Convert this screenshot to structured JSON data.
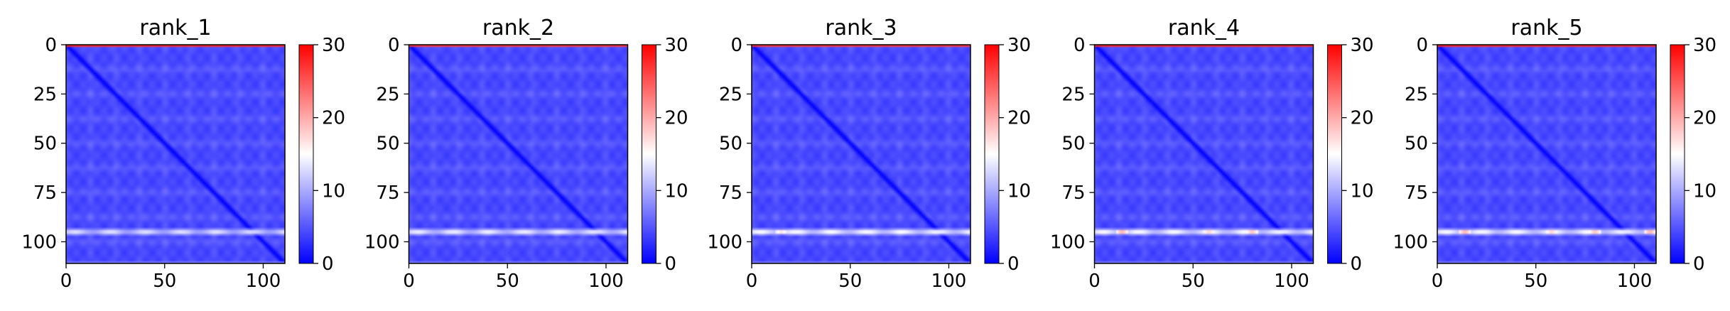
{
  "chart_data": [
    {
      "type": "heatmap",
      "title": "rank_1",
      "xlabel": "",
      "ylabel": "",
      "xlim": [
        0,
        111
      ],
      "ylim": [
        111,
        0
      ],
      "xticks": [
        0,
        50,
        100
      ],
      "yticks": [
        0,
        25,
        50,
        75,
        100
      ],
      "colorbar": {
        "range": [
          0,
          30
        ],
        "ticks": [
          0,
          10,
          20,
          30
        ],
        "colormap": "bwr"
      },
      "features": {
        "diagonal_value": 0,
        "background_value": 4,
        "band_rows": [
          {
            "y": 95,
            "value": 13
          }
        ],
        "top_row_value": 28
      },
      "hotspots": []
    },
    {
      "type": "heatmap",
      "title": "rank_2",
      "xlabel": "",
      "ylabel": "",
      "xlim": [
        0,
        111
      ],
      "ylim": [
        111,
        0
      ],
      "xticks": [
        0,
        50,
        100
      ],
      "yticks": [
        0,
        25,
        50,
        75,
        100
      ],
      "colorbar": {
        "range": [
          0,
          30
        ],
        "ticks": [
          0,
          10,
          20,
          30
        ],
        "colormap": "bwr"
      },
      "features": {
        "diagonal_value": 0,
        "background_value": 4,
        "band_rows": [
          {
            "y": 95,
            "value": 14
          }
        ],
        "top_row_value": 27
      },
      "hotspots": []
    },
    {
      "type": "heatmap",
      "title": "rank_3",
      "xlabel": "",
      "ylabel": "",
      "xlim": [
        0,
        111
      ],
      "ylim": [
        111,
        0
      ],
      "xticks": [
        0,
        50,
        100
      ],
      "yticks": [
        0,
        25,
        50,
        75,
        100
      ],
      "colorbar": {
        "range": [
          0,
          30
        ],
        "ticks": [
          0,
          10,
          20,
          30
        ],
        "colormap": "bwr"
      },
      "features": {
        "diagonal_value": 0,
        "background_value": 4,
        "band_rows": [
          {
            "y": 95,
            "value": 15
          }
        ],
        "top_row_value": 27
      },
      "hotspots": [
        {
          "x": 15,
          "y": 95,
          "value": 19
        }
      ]
    },
    {
      "type": "heatmap",
      "title": "rank_4",
      "xlabel": "",
      "ylabel": "",
      "xlim": [
        0,
        111
      ],
      "ylim": [
        111,
        0
      ],
      "xticks": [
        0,
        50,
        100
      ],
      "yticks": [
        0,
        25,
        50,
        75,
        100
      ],
      "colorbar": {
        "range": [
          0,
          30
        ],
        "ticks": [
          0,
          10,
          20,
          30
        ],
        "colormap": "bwr"
      },
      "features": {
        "diagonal_value": 0,
        "background_value": 4,
        "band_rows": [
          {
            "y": 95,
            "value": 15
          }
        ],
        "top_row_value": 28
      },
      "hotspots": [
        {
          "x": 14,
          "y": 95,
          "value": 22
        },
        {
          "x": 58,
          "y": 95,
          "value": 20
        },
        {
          "x": 80,
          "y": 95,
          "value": 21
        }
      ]
    },
    {
      "type": "heatmap",
      "title": "rank_5",
      "xlabel": "",
      "ylabel": "",
      "xlim": [
        0,
        111
      ],
      "ylim": [
        111,
        0
      ],
      "xticks": [
        0,
        50,
        100
      ],
      "yticks": [
        0,
        25,
        50,
        75,
        100
      ],
      "colorbar": {
        "range": [
          0,
          30
        ],
        "ticks": [
          0,
          10,
          20,
          30
        ],
        "colormap": "bwr"
      },
      "features": {
        "diagonal_value": 0,
        "background_value": 4,
        "band_rows": [
          {
            "y": 95,
            "value": 15
          }
        ],
        "top_row_value": 28
      },
      "hotspots": [
        {
          "x": 14,
          "y": 95,
          "value": 22
        },
        {
          "x": 58,
          "y": 95,
          "value": 20
        },
        {
          "x": 80,
          "y": 95,
          "value": 21
        },
        {
          "x": 108,
          "y": 95,
          "value": 22
        }
      ]
    }
  ]
}
